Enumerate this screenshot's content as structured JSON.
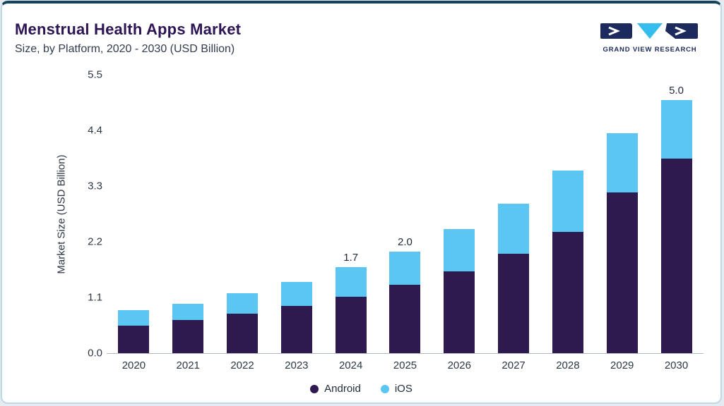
{
  "header": {
    "title": "Menstrual Health Apps Market",
    "subtitle": "Size, by Platform, 2020 - 2030 (USD Billion)",
    "logo_text": "GRAND VIEW RESEARCH"
  },
  "colors": {
    "android": "#2f1a4f",
    "ios": "#5bc6f2",
    "title": "#2d1454",
    "top_accent": "#14455e",
    "logo_navy": "#1d2a5e",
    "logo_cyan": "#35bdee"
  },
  "chart_data": {
    "type": "bar",
    "stacked": true,
    "title": "Menstrual Health Apps Market Size, by Platform, 2020 - 2030 (USD Billion)",
    "ylabel": "Market Size (USD Billion)",
    "ylim": [
      0,
      5.5
    ],
    "yticks": [
      0.0,
      1.1,
      2.2,
      3.3,
      4.4,
      5.5
    ],
    "ytick_labels": [
      "0.0",
      "1.1",
      "2.2",
      "3.3",
      "4.4",
      "5.5"
    ],
    "categories": [
      "2020",
      "2021",
      "2022",
      "2023",
      "2024",
      "2025",
      "2026",
      "2027",
      "2028",
      "2029",
      "2030"
    ],
    "series": [
      {
        "name": "Android",
        "color": "#2f1a4f",
        "values": [
          0.55,
          0.65,
          0.78,
          0.93,
          1.12,
          1.35,
          1.62,
          1.97,
          2.4,
          3.18,
          3.85
        ]
      },
      {
        "name": "iOS",
        "color": "#5bc6f2",
        "values": [
          0.3,
          0.33,
          0.4,
          0.47,
          0.58,
          0.65,
          0.83,
          0.98,
          1.2,
          1.17,
          1.15
        ]
      }
    ],
    "totals": [
      0.85,
      0.98,
      1.18,
      1.4,
      1.7,
      2.0,
      2.45,
      2.95,
      3.6,
      4.35,
      5.0
    ],
    "value_labels": [
      "",
      "",
      "",
      "",
      "1.7",
      "2.0",
      "",
      "",
      "",
      "",
      "5.0"
    ],
    "legend_position": "bottom",
    "grid": false
  }
}
